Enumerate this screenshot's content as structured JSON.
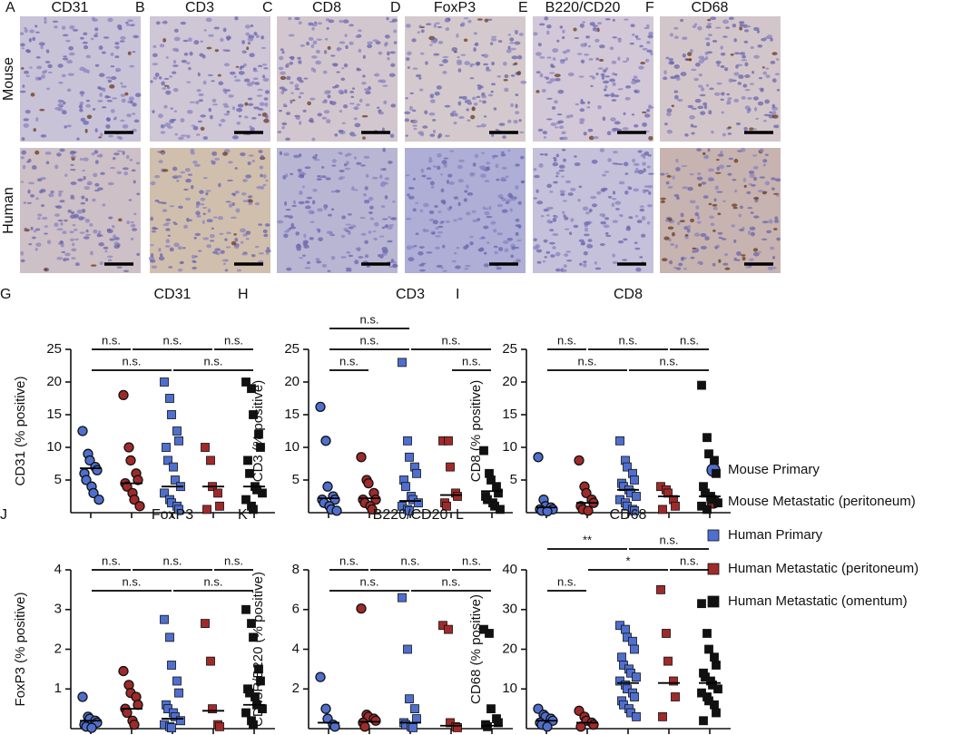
{
  "images": {
    "columns": [
      {
        "letter": "A",
        "stain": "CD31"
      },
      {
        "letter": "B",
        "stain": "CD3"
      },
      {
        "letter": "C",
        "stain": "CD8"
      },
      {
        "letter": "D",
        "stain": "FoxP3"
      },
      {
        "letter": "E",
        "stain": "B220/CD20"
      },
      {
        "letter": "F",
        "stain": "CD68"
      }
    ],
    "rows": [
      "Mouse",
      "Human"
    ]
  },
  "legend": [
    {
      "label": "Mouse Primary",
      "color": "#4f6fcf",
      "shape": "circle"
    },
    {
      "label": "Mouse Metastatic (peritoneum)",
      "color": "#a02a2a",
      "shape": "circle"
    },
    {
      "label": "Human Primary",
      "color": "#4f6fcf",
      "shape": "square"
    },
    {
      "label": "Human Metastatic (peritoneum)",
      "color": "#a02a2a",
      "shape": "square"
    },
    {
      "label": "Human Metastatic (omentum)",
      "color": "#111111",
      "shape": "square"
    }
  ],
  "chart_data": [
    {
      "type": "dot",
      "panel": "G",
      "title": "CD31",
      "y_label": "CD31 (% positive)",
      "ylim": [
        0,
        25
      ],
      "yticks": [
        5,
        10,
        15,
        20,
        25
      ],
      "series": [
        {
          "values": [
            12.5,
            9,
            8,
            7,
            6.5,
            6,
            5,
            4,
            3,
            2
          ],
          "median": 6.8
        },
        {
          "values": [
            18,
            10,
            8,
            6,
            5,
            4.5,
            4,
            3,
            2,
            1
          ],
          "median": 4.5
        },
        {
          "values": [
            20,
            17.5,
            15,
            12.5,
            11,
            10,
            8,
            7,
            5,
            4,
            3,
            2,
            1.5,
            1,
            0.5
          ],
          "median": 4
        },
        {
          "values": [
            10,
            8,
            4,
            3,
            1,
            0.5
          ],
          "median": 4
        },
        {
          "values": [
            20,
            19,
            15,
            12,
            10,
            8,
            6,
            4,
            3.5,
            3,
            2,
            1,
            0.5
          ],
          "median": 4
        }
      ],
      "comparison_rows": [
        [
          {
            "groups": [
              0,
              1
            ],
            "label": "n.s."
          },
          {
            "groups": [
              1,
              3
            ],
            "label": "n.s."
          },
          {
            "groups": [
              3,
              4
            ],
            "label": "n.s."
          }
        ],
        [
          {
            "groups": [
              0,
              2
            ],
            "label": "n.s."
          },
          {
            "groups": [
              2,
              4
            ],
            "label": "n.s."
          }
        ]
      ]
    },
    {
      "type": "dot",
      "panel": "H",
      "title": "CD3",
      "y_label": "CD3 (% positive)",
      "ylim": [
        0,
        25
      ],
      "yticks": [
        5,
        10,
        15,
        20,
        25
      ],
      "series": [
        {
          "values": [
            16.2,
            11,
            4,
            2.5,
            2,
            2,
            1.5,
            1,
            0.5,
            0.3
          ],
          "median": 2.2
        },
        {
          "values": [
            8.5,
            5,
            4.5,
            3,
            2,
            2,
            1.5,
            1,
            0.5
          ],
          "median": 2.2
        },
        {
          "values": [
            23,
            11,
            8.5,
            7,
            6,
            5,
            4,
            2.5,
            2,
            1.5,
            1,
            0.5,
            0.3
          ],
          "median": 1.8
        },
        {
          "values": [
            11,
            11,
            7,
            3,
            2.5,
            1.5,
            1
          ],
          "median": 2.7
        },
        {
          "values": [
            9.5,
            6,
            5,
            4,
            3,
            2.5,
            2,
            1.5,
            1,
            0.5
          ],
          "median": 3.3
        }
      ],
      "comparison_rows": [
        [
          {
            "groups": [
              0,
              2
            ],
            "label": "n.s."
          }
        ],
        [
          {
            "groups": [
              0,
              2
            ],
            "label": "n.s."
          },
          {
            "groups": [
              2,
              4
            ],
            "label": "n.s."
          }
        ],
        [
          {
            "groups": [
              0,
              1
            ],
            "label": "n.s."
          },
          {
            "groups": [
              3,
              4
            ],
            "label": "n.s."
          }
        ]
      ]
    },
    {
      "type": "dot",
      "panel": "I",
      "title": "CD8",
      "y_label": "CD8 (% positive)",
      "ylim": [
        0,
        25
      ],
      "yticks": [
        5,
        10,
        15,
        20,
        25
      ],
      "series": [
        {
          "values": [
            8.5,
            2,
            1,
            0.8,
            0.5,
            0.5,
            0.3,
            0.2
          ],
          "median": 0.8
        },
        {
          "values": [
            8,
            4,
            3,
            2,
            1.5,
            1,
            0.5,
            0.3
          ],
          "median": 1.5
        },
        {
          "values": [
            11,
            8,
            7,
            6,
            5,
            4.5,
            4,
            3.5,
            3,
            2.5,
            2,
            1.5,
            1,
            0.5,
            0.3
          ],
          "median": 3.5
        },
        {
          "values": [
            4,
            3.5,
            3,
            2,
            1,
            0.5
          ],
          "median": 2.5
        },
        {
          "values": [
            19.5,
            11.5,
            9,
            8,
            6,
            4,
            3,
            2.5,
            2,
            1.5,
            1,
            0.5
          ],
          "median": 2.5
        }
      ],
      "comparison_rows": [
        [
          {
            "groups": [
              0,
              1
            ],
            "label": "n.s."
          },
          {
            "groups": [
              1,
              3
            ],
            "label": "n.s."
          },
          {
            "groups": [
              3,
              4
            ],
            "label": "n.s."
          }
        ],
        [
          {
            "groups": [
              0,
              2
            ],
            "label": "n.s."
          },
          {
            "groups": [
              2,
              4
            ],
            "label": "n.s."
          }
        ]
      ]
    },
    {
      "type": "dot",
      "panel": "J",
      "title": "FoxP3",
      "y_label": "FoxP3 (% positive)",
      "ylim": [
        0,
        4
      ],
      "yticks": [
        1,
        2,
        3,
        4
      ],
      "series": [
        {
          "values": [
            0.8,
            0.3,
            0.25,
            0.2,
            0.15,
            0.1,
            0.05,
            0.02
          ],
          "median": 0.2
        },
        {
          "values": [
            1.45,
            1.1,
            0.9,
            0.8,
            0.6,
            0.5,
            0.4,
            0.2,
            0.1
          ],
          "median": 0.5
        },
        {
          "values": [
            2.75,
            2.3,
            1.6,
            1.2,
            0.9,
            0.6,
            0.5,
            0.4,
            0.3,
            0.2,
            0.1,
            0.05,
            0.02
          ],
          "median": 0.25
        },
        {
          "values": [
            2.65,
            1.7,
            0.5,
            0.1,
            0.05
          ],
          "median": 0.45
        },
        {
          "values": [
            3,
            2.65,
            2.3,
            1.5,
            1.2,
            1,
            0.9,
            0.8,
            0.6,
            0.5,
            0.4,
            0.2,
            0.1
          ],
          "median": 0.6
        }
      ],
      "comparison_rows": [
        [
          {
            "groups": [
              0,
              1
            ],
            "label": "n.s."
          },
          {
            "groups": [
              1,
              3
            ],
            "label": "n.s."
          },
          {
            "groups": [
              3,
              4
            ],
            "label": "n.s."
          }
        ],
        [
          {
            "groups": [
              0,
              2
            ],
            "label": "n.s."
          },
          {
            "groups": [
              2,
              4
            ],
            "label": "n.s."
          }
        ]
      ]
    },
    {
      "type": "dot",
      "panel": "K",
      "title": "B220/CD20",
      "y_label": "CD45R/B220 (% positive)",
      "ylim": [
        0,
        8
      ],
      "yticks": [
        2,
        4,
        6,
        8
      ],
      "series": [
        {
          "values": [
            2.6,
            1,
            0.5,
            0.2,
            0.1
          ],
          "median": 0.3
        },
        {
          "values": [
            6.05,
            0.7,
            0.6,
            0.5,
            0.4,
            0.3,
            0.1
          ],
          "median": 0.35
        },
        {
          "values": [
            6.6,
            4,
            1.5,
            1,
            0.5,
            0.3,
            0.2,
            0.1,
            0.05
          ],
          "median": 0.3
        },
        {
          "values": [
            5.2,
            5,
            0.3,
            0.1,
            0.05
          ],
          "median": 0.15
        },
        {
          "values": [
            5,
            4.8,
            1,
            0.5,
            0.3,
            0.2,
            0.1
          ],
          "median": 0.15
        }
      ],
      "comparison_rows": [
        [
          {
            "groups": [
              0,
              1
            ],
            "label": "n.s."
          },
          {
            "groups": [
              1,
              3
            ],
            "label": "n.s."
          },
          {
            "groups": [
              3,
              4
            ],
            "label": "n.s."
          }
        ],
        [
          {
            "groups": [
              0,
              2
            ],
            "label": "n.s."
          },
          {
            "groups": [
              2,
              4
            ],
            "label": "n.s."
          }
        ]
      ]
    },
    {
      "type": "dot",
      "panel": "L",
      "title": "CD68",
      "y_label": "CD68 (% positive)",
      "ylim": [
        0,
        40
      ],
      "yticks": [
        10,
        20,
        30,
        40
      ],
      "series": [
        {
          "values": [
            5,
            3.5,
            3,
            2.5,
            2,
            1.5,
            1,
            0.5
          ],
          "median": 2
        },
        {
          "values": [
            4.5,
            3,
            2,
            1.5,
            1,
            0.5
          ],
          "median": 1.5
        },
        {
          "values": [
            26,
            25,
            23,
            22,
            20,
            18,
            16,
            15,
            14,
            13,
            12,
            11,
            10,
            9,
            8,
            7,
            6,
            5,
            4,
            3
          ],
          "median": 11.5
        },
        {
          "values": [
            35,
            24,
            17,
            12,
            8,
            3
          ],
          "median": 11.5
        },
        {
          "values": [
            31.5,
            24,
            20,
            18,
            16,
            14,
            13,
            12,
            11,
            10,
            9,
            8,
            7,
            6,
            4,
            2
          ],
          "median": 11.5
        }
      ],
      "comparison_rows": [
        [
          {
            "groups": [
              0,
              2
            ],
            "label": "**"
          },
          {
            "groups": [
              2,
              4
            ],
            "label": "n.s."
          }
        ],
        [
          {
            "groups": [
              1,
              3
            ],
            "label": "*"
          },
          {
            "groups": [
              3,
              4
            ],
            "label": "n.s."
          }
        ],
        [
          {
            "groups": [
              0,
              1
            ],
            "label": "n.s."
          }
        ]
      ]
    }
  ]
}
